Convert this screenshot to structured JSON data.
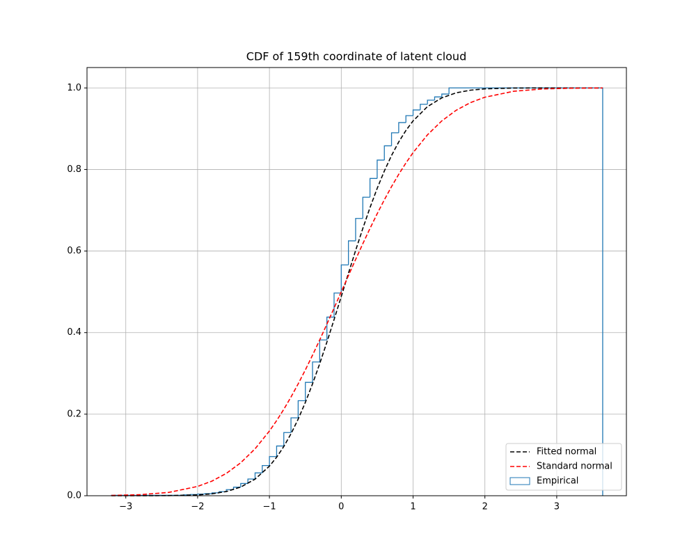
{
  "chart_data": {
    "type": "line",
    "title": "CDF of 159th coordinate of latent cloud",
    "xlim": [
      -3.54,
      3.97
    ],
    "ylim": [
      0,
      1.05
    ],
    "xticks": [
      {
        "value": -3,
        "label": "−3"
      },
      {
        "value": -2,
        "label": "−2"
      },
      {
        "value": -1,
        "label": "−1"
      },
      0,
      1,
      2,
      3
    ],
    "yticks": [
      {
        "value": 0,
        "label": "0.0"
      },
      0.2,
      0.4,
      0.6,
      0.8,
      {
        "value": 1,
        "label": "1.0"
      }
    ],
    "grid": true,
    "legend": "lower right",
    "series": [
      {
        "name": "Fitted normal",
        "type": "line",
        "color": "#000000",
        "dashed": true,
        "x": [
          -3.2,
          -2.8,
          -2.4,
          -2.0,
          -1.8,
          -1.6,
          -1.4,
          -1.2,
          -1.0,
          -0.9,
          -0.8,
          -0.7,
          -0.6,
          -0.5,
          -0.4,
          -0.3,
          -0.2,
          -0.1,
          0,
          0.1,
          0.2,
          0.3,
          0.4,
          0.5,
          0.6,
          0.7,
          0.8,
          0.9,
          1.0,
          1.2,
          1.4,
          1.6,
          1.8,
          2.0,
          2.4,
          2.8,
          3.2,
          3.64
        ],
        "values": [
          0.0,
          0.0,
          0.0003,
          0.002,
          0.0047,
          0.0103,
          0.0212,
          0.0407,
          0.0726,
          0.0944,
          0.1207,
          0.1518,
          0.1878,
          0.2288,
          0.2743,
          0.3238,
          0.3767,
          0.432,
          0.4885,
          0.5455,
          0.6015,
          0.6554,
          0.7064,
          0.7536,
          0.7964,
          0.8343,
          0.8674,
          0.8956,
          0.9192,
          0.9541,
          0.9757,
          0.988,
          0.9945,
          0.9977,
          0.9997,
          1.0,
          1.0,
          1.0
        ]
      },
      {
        "name": "Standard normal",
        "type": "line",
        "color": "#ff0000",
        "dashed": true,
        "x": [
          -3.2,
          -2.8,
          -2.4,
          -2.0,
          -1.8,
          -1.6,
          -1.4,
          -1.2,
          -1.0,
          -0.9,
          -0.8,
          -0.7,
          -0.6,
          -0.5,
          -0.4,
          -0.3,
          -0.2,
          -0.1,
          0,
          0.1,
          0.2,
          0.3,
          0.4,
          0.5,
          0.6,
          0.7,
          0.8,
          0.9,
          1.0,
          1.2,
          1.4,
          1.6,
          1.8,
          2.0,
          2.4,
          2.8,
          3.2,
          3.64
        ],
        "values": [
          0.0007,
          0.0026,
          0.0082,
          0.0228,
          0.0359,
          0.0548,
          0.0808,
          0.1151,
          0.1587,
          0.1841,
          0.2119,
          0.242,
          0.2743,
          0.3085,
          0.3446,
          0.3821,
          0.4207,
          0.4602,
          0.5,
          0.5398,
          0.5793,
          0.6179,
          0.6554,
          0.6915,
          0.7257,
          0.758,
          0.7881,
          0.8159,
          0.8413,
          0.8849,
          0.9192,
          0.9452,
          0.9641,
          0.9772,
          0.9918,
          0.9974,
          0.9993,
          0.9999
        ]
      },
      {
        "name": "Empirical",
        "type": "step",
        "color": "#1f77b4",
        "bins": [
          -3.2,
          -2.2,
          -2.1,
          -2.0,
          -1.9,
          -1.8,
          -1.7,
          -1.6,
          -1.5,
          -1.4,
          -1.3,
          -1.2,
          -1.1,
          -1.0,
          -0.9,
          -0.8,
          -0.7,
          -0.6,
          -0.5,
          -0.4,
          -0.3,
          -0.2,
          -0.1,
          0.0,
          0.1,
          0.2,
          0.3,
          0.4,
          0.5,
          0.6,
          0.7,
          0.8,
          0.9,
          1.0,
          1.1,
          1.2,
          1.3,
          1.4,
          1.5,
          3.64
        ],
        "values": [
          0.001,
          0.002,
          0.003,
          0.004,
          0.005,
          0.007,
          0.01,
          0.015,
          0.021,
          0.03,
          0.041,
          0.056,
          0.074,
          0.096,
          0.122,
          0.155,
          0.191,
          0.233,
          0.278,
          0.328,
          0.382,
          0.438,
          0.497,
          0.566,
          0.625,
          0.68,
          0.732,
          0.778,
          0.823,
          0.858,
          0.89,
          0.915,
          0.932,
          0.946,
          0.96,
          0.97,
          0.978,
          0.985,
          1.0
        ]
      }
    ]
  }
}
